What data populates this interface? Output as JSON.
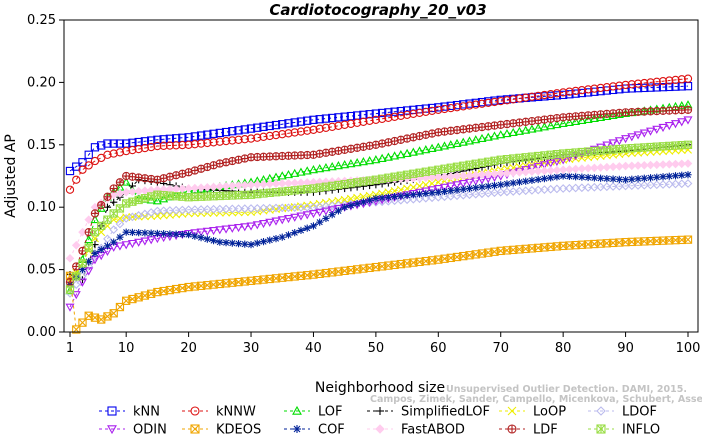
{
  "chart_data": {
    "type": "line",
    "title": "Cardiotocography_20_v03",
    "xlabel": "Neighborhood size",
    "ylabel": "Adjusted AP",
    "xlim": [
      1,
      100
    ],
    "ylim": [
      0,
      0.25
    ],
    "x_ticks": [
      "1",
      "10",
      "20",
      "30",
      "40",
      "50",
      "60",
      "70",
      "80",
      "90",
      "100"
    ],
    "y_ticks": [
      "0.00",
      "0.05",
      "0.10",
      "0.15",
      "0.20",
      "0.25"
    ],
    "grid": false,
    "legend_position": "bottom",
    "watermark": [
      "Unsupervised Outlier Detection. DAMI, 2015.",
      "Campos, Zimek, Sander, Campello, Micenkova, Schubert, Assent, Houle"
    ],
    "series": [
      {
        "name": "kNN",
        "color": "#0000ee",
        "marker": "square",
        "points": [
          [
            1,
            0.129
          ],
          [
            3,
            0.136
          ],
          [
            5,
            0.148
          ],
          [
            7,
            0.151
          ],
          [
            10,
            0.151
          ],
          [
            15,
            0.154
          ],
          [
            20,
            0.156
          ],
          [
            30,
            0.163
          ],
          [
            40,
            0.17
          ],
          [
            50,
            0.175
          ],
          [
            60,
            0.18
          ],
          [
            70,
            0.186
          ],
          [
            80,
            0.19
          ],
          [
            90,
            0.195
          ],
          [
            100,
            0.197
          ]
        ]
      },
      {
        "name": "kNNW",
        "color": "#dd1111",
        "marker": "circle",
        "points": [
          [
            1,
            0.114
          ],
          [
            3,
            0.13
          ],
          [
            5,
            0.137
          ],
          [
            7,
            0.142
          ],
          [
            10,
            0.145
          ],
          [
            15,
            0.149
          ],
          [
            20,
            0.15
          ],
          [
            30,
            0.155
          ],
          [
            40,
            0.162
          ],
          [
            50,
            0.17
          ],
          [
            60,
            0.178
          ],
          [
            70,
            0.185
          ],
          [
            80,
            0.192
          ],
          [
            90,
            0.198
          ],
          [
            100,
            0.203
          ]
        ]
      },
      {
        "name": "LOF",
        "color": "#00dd00",
        "marker": "triangle-up",
        "points": [
          [
            1,
            0.033
          ],
          [
            3,
            0.058
          ],
          [
            5,
            0.09
          ],
          [
            7,
            0.108
          ],
          [
            10,
            0.12
          ],
          [
            12,
            0.107
          ],
          [
            15,
            0.105
          ],
          [
            20,
            0.113
          ],
          [
            30,
            0.12
          ],
          [
            40,
            0.13
          ],
          [
            50,
            0.138
          ],
          [
            60,
            0.148
          ],
          [
            70,
            0.158
          ],
          [
            80,
            0.167
          ],
          [
            90,
            0.175
          ],
          [
            100,
            0.182
          ]
        ]
      },
      {
        "name": "SimplifiedLOF",
        "color": "#000000",
        "marker": "plus",
        "points": [
          [
            1,
            0.046
          ],
          [
            3,
            0.042
          ],
          [
            5,
            0.07
          ],
          [
            7,
            0.1
          ],
          [
            10,
            0.112
          ],
          [
            12,
            0.122
          ],
          [
            15,
            0.12
          ],
          [
            20,
            0.115
          ],
          [
            30,
            0.112
          ],
          [
            40,
            0.112
          ],
          [
            50,
            0.118
          ],
          [
            60,
            0.125
          ],
          [
            70,
            0.135
          ],
          [
            80,
            0.142
          ],
          [
            90,
            0.145
          ],
          [
            100,
            0.15
          ]
        ]
      },
      {
        "name": "LoOP",
        "color": "#eeee00",
        "marker": "x",
        "points": [
          [
            1,
            0.04
          ],
          [
            3,
            0.055
          ],
          [
            5,
            0.075
          ],
          [
            8,
            0.09
          ],
          [
            10,
            0.092
          ],
          [
            15,
            0.093
          ],
          [
            20,
            0.095
          ],
          [
            30,
            0.096
          ],
          [
            40,
            0.102
          ],
          [
            50,
            0.11
          ],
          [
            60,
            0.12
          ],
          [
            70,
            0.13
          ],
          [
            80,
            0.138
          ],
          [
            90,
            0.143
          ],
          [
            100,
            0.146
          ]
        ]
      },
      {
        "name": "LDOF",
        "color": "#bbbbee",
        "marker": "diamond",
        "points": [
          [
            1,
            0.031
          ],
          [
            3,
            0.045
          ],
          [
            5,
            0.06
          ],
          [
            8,
            0.082
          ],
          [
            10,
            0.091
          ],
          [
            15,
            0.097
          ],
          [
            20,
            0.098
          ],
          [
            30,
            0.099
          ],
          [
            40,
            0.1
          ],
          [
            50,
            0.104
          ],
          [
            60,
            0.108
          ],
          [
            70,
            0.112
          ],
          [
            80,
            0.115
          ],
          [
            90,
            0.117
          ],
          [
            100,
            0.119
          ]
        ]
      },
      {
        "name": "ODIN",
        "color": "#aa22ee",
        "marker": "triangle-down",
        "points": [
          [
            1,
            0.02
          ],
          [
            3,
            0.04
          ],
          [
            5,
            0.058
          ],
          [
            8,
            0.068
          ],
          [
            10,
            0.07
          ],
          [
            15,
            0.075
          ],
          [
            20,
            0.079
          ],
          [
            30,
            0.085
          ],
          [
            40,
            0.095
          ],
          [
            50,
            0.105
          ],
          [
            60,
            0.115
          ],
          [
            70,
            0.125
          ],
          [
            80,
            0.138
          ],
          [
            90,
            0.155
          ],
          [
            100,
            0.17
          ]
        ]
      },
      {
        "name": "KDEOS",
        "color": "#f0a500",
        "marker": "square-x",
        "points": [
          [
            1,
            0.045
          ],
          [
            2,
            0.002
          ],
          [
            4,
            0.013
          ],
          [
            6,
            0.01
          ],
          [
            8,
            0.015
          ],
          [
            10,
            0.025
          ],
          [
            15,
            0.032
          ],
          [
            20,
            0.036
          ],
          [
            30,
            0.041
          ],
          [
            40,
            0.046
          ],
          [
            50,
            0.052
          ],
          [
            60,
            0.058
          ],
          [
            70,
            0.065
          ],
          [
            80,
            0.069
          ],
          [
            90,
            0.072
          ],
          [
            100,
            0.074
          ]
        ]
      },
      {
        "name": "COF",
        "color": "#002299",
        "marker": "asterisk",
        "points": [
          [
            1,
            0.038
          ],
          [
            3,
            0.05
          ],
          [
            5,
            0.063
          ],
          [
            8,
            0.072
          ],
          [
            10,
            0.08
          ],
          [
            15,
            0.079
          ],
          [
            20,
            0.078
          ],
          [
            25,
            0.072
          ],
          [
            30,
            0.07
          ],
          [
            35,
            0.076
          ],
          [
            40,
            0.085
          ],
          [
            45,
            0.1
          ],
          [
            50,
            0.107
          ],
          [
            60,
            0.112
          ],
          [
            70,
            0.118
          ],
          [
            80,
            0.125
          ],
          [
            90,
            0.122
          ],
          [
            100,
            0.126
          ]
        ]
      },
      {
        "name": "FastABOD",
        "color": "#ffccee",
        "marker": "diamond-filled",
        "points": [
          [
            1,
            0.059
          ],
          [
            3,
            0.08
          ],
          [
            5,
            0.1
          ],
          [
            8,
            0.11
          ],
          [
            10,
            0.112
          ],
          [
            15,
            0.114
          ],
          [
            20,
            0.115
          ],
          [
            30,
            0.118
          ],
          [
            40,
            0.12
          ],
          [
            50,
            0.122
          ],
          [
            60,
            0.124
          ],
          [
            70,
            0.127
          ],
          [
            80,
            0.13
          ],
          [
            90,
            0.133
          ],
          [
            100,
            0.135
          ]
        ]
      },
      {
        "name": "LDF",
        "color": "#b22222",
        "marker": "circle-plus",
        "points": [
          [
            1,
            0.04
          ],
          [
            3,
            0.065
          ],
          [
            5,
            0.095
          ],
          [
            8,
            0.115
          ],
          [
            10,
            0.125
          ],
          [
            15,
            0.122
          ],
          [
            20,
            0.128
          ],
          [
            25,
            0.135
          ],
          [
            30,
            0.14
          ],
          [
            40,
            0.142
          ],
          [
            50,
            0.15
          ],
          [
            60,
            0.16
          ],
          [
            70,
            0.166
          ],
          [
            80,
            0.172
          ],
          [
            90,
            0.176
          ],
          [
            100,
            0.178
          ]
        ]
      },
      {
        "name": "INFLO",
        "color": "#99dd44",
        "marker": "square-star",
        "points": [
          [
            1,
            0.034
          ],
          [
            3,
            0.055
          ],
          [
            5,
            0.08
          ],
          [
            8,
            0.095
          ],
          [
            10,
            0.103
          ],
          [
            15,
            0.11
          ],
          [
            20,
            0.108
          ],
          [
            30,
            0.11
          ],
          [
            40,
            0.115
          ],
          [
            50,
            0.122
          ],
          [
            60,
            0.13
          ],
          [
            70,
            0.138
          ],
          [
            80,
            0.143
          ],
          [
            90,
            0.147
          ],
          [
            100,
            0.15
          ]
        ]
      }
    ]
  }
}
